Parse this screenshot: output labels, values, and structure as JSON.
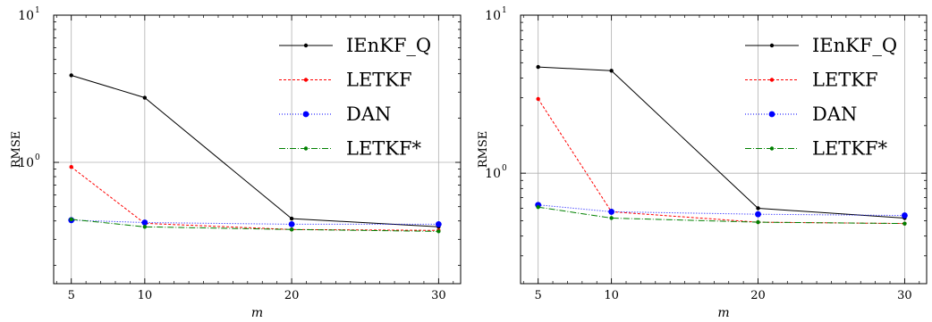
{
  "chart_data": [
    {
      "type": "line",
      "x": [
        5,
        10,
        20,
        30
      ],
      "xlabel": "m",
      "ylabel": "RMSE",
      "yscale": "log",
      "xlim": [
        3.8,
        31.5
      ],
      "ylim": [
        0.15,
        10
      ],
      "xticks": [
        "5",
        "10",
        "20",
        "30"
      ],
      "yticks": [
        {
          "value": 10,
          "base": "10",
          "exp": "1"
        },
        {
          "value": 1,
          "base": "10",
          "exp": "0"
        }
      ],
      "grid": true,
      "legend_position": "top-right",
      "series": [
        {
          "name": "IEnKF_Q",
          "values": [
            3.9,
            2.75,
            0.415,
            0.365
          ],
          "color": "#000000",
          "dash": "",
          "marker": 2.2
        },
        {
          "name": "LETKF",
          "values": [
            0.93,
            0.385,
            0.35,
            0.345
          ],
          "color": "#ff0000",
          "dash": "3,2",
          "marker": 2.2
        },
        {
          "name": "DAN",
          "values": [
            0.405,
            0.39,
            0.38,
            0.38
          ],
          "color": "#0000ff",
          "dash": "1,2",
          "marker": 3.4
        },
        {
          "name": "LETKF*",
          "values": [
            0.41,
            0.365,
            0.35,
            0.34
          ],
          "color": "#008000",
          "dash": "7,2,1,2",
          "marker": 2.2
        }
      ]
    },
    {
      "type": "line",
      "x": [
        5,
        10,
        20,
        30
      ],
      "xlabel": "m",
      "ylabel": "RMSE",
      "yscale": "log",
      "xlim": [
        3.8,
        31.5
      ],
      "ylim": [
        0.2,
        10
      ],
      "xticks": [
        "5",
        "10",
        "20",
        "30"
      ],
      "yticks": [
        {
          "value": 10,
          "base": "10",
          "exp": "1"
        },
        {
          "value": 1,
          "base": "10",
          "exp": "0"
        }
      ],
      "grid": true,
      "legend_position": "top-right",
      "series": [
        {
          "name": "IEnKF_Q",
          "values": [
            4.7,
            4.45,
            0.6,
            0.52
          ],
          "color": "#000000",
          "dash": "",
          "marker": 2.2
        },
        {
          "name": "LETKF",
          "values": [
            2.95,
            0.57,
            0.49,
            0.48
          ],
          "color": "#ff0000",
          "dash": "3,2",
          "marker": 2.2
        },
        {
          "name": "DAN",
          "values": [
            0.63,
            0.57,
            0.55,
            0.54
          ],
          "color": "#0000ff",
          "dash": "1,2",
          "marker": 3.4
        },
        {
          "name": "LETKF*",
          "values": [
            0.61,
            0.52,
            0.49,
            0.48
          ],
          "color": "#008000",
          "dash": "7,2,1,2",
          "marker": 2.2
        }
      ]
    }
  ]
}
